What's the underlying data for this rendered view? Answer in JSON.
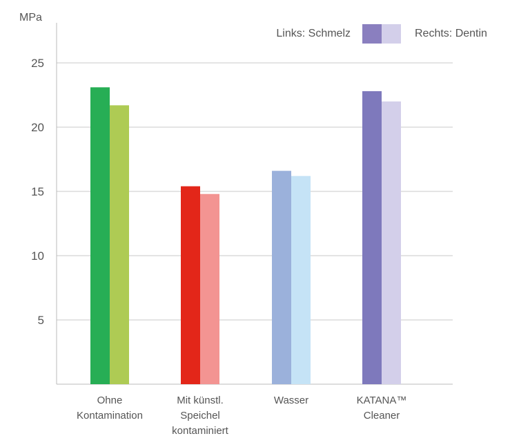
{
  "chart_data": {
    "type": "bar",
    "ylabel": "MPa",
    "ylim": [
      0,
      27
    ],
    "yticks": [
      "5",
      "10",
      "15",
      "20",
      "25"
    ],
    "grid": true,
    "legend": {
      "placement": "top-right",
      "entries": [
        {
          "label": "Links: Schmelz",
          "color": "#8a7fbf"
        },
        {
          "label": "Rechts: Dentin",
          "color": "#d3cfea"
        }
      ]
    },
    "categories": [
      {
        "lines": [
          "Ohne",
          "Kontamination"
        ],
        "left_color": "#27ae55",
        "right_color": "#aecb54"
      },
      {
        "lines": [
          "Mit künstl.",
          "Speichel",
          "kontaminiert"
        ],
        "left_color": "#e32619",
        "right_color": "#f39492"
      },
      {
        "lines": [
          "Wasser"
        ],
        "left_color": "#9bb1db",
        "right_color": "#c5e3f6"
      },
      {
        "lines": [
          "KATANA™",
          "Cleaner"
        ],
        "left_color": "#7e79bc",
        "right_color": "#d3cfea"
      }
    ],
    "series": [
      {
        "name": "Links: Schmelz",
        "values": [
          23.1,
          15.4,
          16.6,
          22.8
        ]
      },
      {
        "name": "Rechts: Dentin",
        "values": [
          21.7,
          14.8,
          16.2,
          22.0
        ]
      }
    ]
  }
}
